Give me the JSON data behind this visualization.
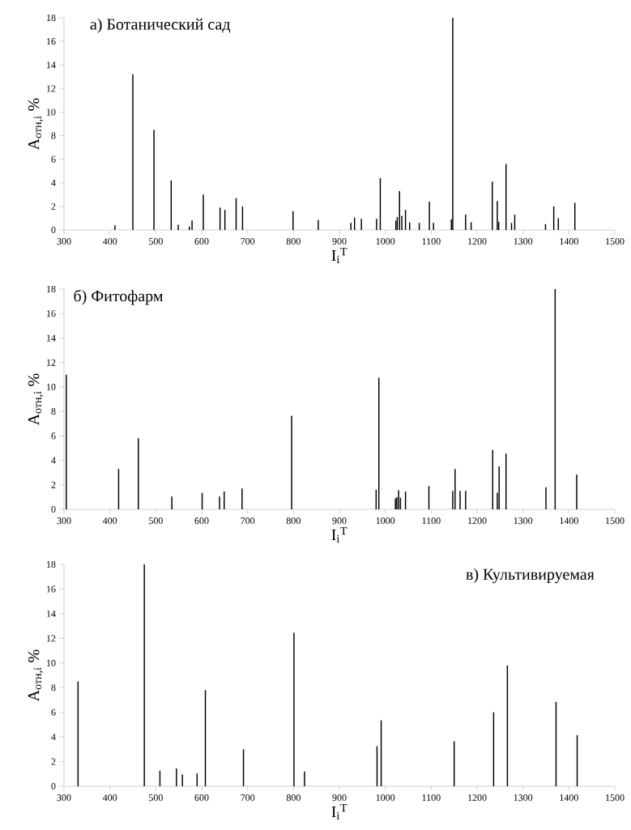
{
  "chart_data": [
    {
      "type": "bar",
      "title": "а) Ботанический сад",
      "xlabel": "I$_{i}$$^{T}$",
      "ylabel": "A$_{отн,i}$ %",
      "x": [
        411,
        450,
        496,
        533.5,
        549,
        573,
        579,
        603.5,
        640,
        650.6,
        675,
        689,
        799,
        854,
        925,
        933,
        948,
        981,
        989,
        1023,
        1026,
        1031,
        1036,
        1044,
        1053,
        1074,
        1096,
        1105,
        1144,
        1147,
        1175,
        1187,
        1233,
        1244,
        1247,
        1263,
        1275,
        1282,
        1349,
        1367,
        1377,
        1413
      ],
      "values": [
        0.4,
        13.2,
        8.5,
        4.2,
        0.45,
        0.3,
        0.8,
        3.0,
        1.9,
        1.7,
        2.7,
        2.0,
        1.6,
        0.85,
        0.6,
        1.05,
        0.95,
        0.95,
        4.4,
        0.8,
        1.1,
        3.3,
        1.2,
        1.7,
        0.65,
        0.6,
        2.4,
        0.6,
        0.9,
        18,
        1.3,
        0.65,
        4.1,
        2.45,
        0.7,
        5.6,
        0.6,
        1.3,
        0.5,
        2.0,
        1.0,
        2.3
      ],
      "color": "#000000",
      "xlim": [
        300,
        1500
      ],
      "ylim": [
        0,
        18
      ],
      "xticks": [
        300,
        400,
        500,
        600,
        700,
        800,
        900,
        1000,
        1100,
        1200,
        1300,
        1400,
        1500
      ],
      "yticks": [
        0,
        2,
        4,
        6,
        8,
        10,
        12,
        14,
        16,
        18
      ]
    },
    {
      "type": "bar",
      "title": "б) Фитофарм",
      "xlabel": "I$_{i}$$^{T}$",
      "ylabel": "A$_{отн,i}$ %",
      "x": [
        305,
        419,
        462,
        535,
        601,
        639,
        649,
        688,
        796,
        980,
        986,
        1022,
        1025,
        1029,
        1033,
        1044,
        1095,
        1147,
        1152,
        1163,
        1175,
        1234,
        1244,
        1248,
        1263,
        1350,
        1370,
        1417
      ],
      "values": [
        11.0,
        3.3,
        5.8,
        1.05,
        1.35,
        1.05,
        1.45,
        1.7,
        7.65,
        1.6,
        10.75,
        0.9,
        1.0,
        1.55,
        0.95,
        1.45,
        1.9,
        1.5,
        3.3,
        1.5,
        1.5,
        4.85,
        1.35,
        3.5,
        4.55,
        1.8,
        18,
        2.85
      ],
      "color": "#000000",
      "xlim": [
        300,
        1500
      ],
      "ylim": [
        0,
        18
      ],
      "xticks": [
        300,
        400,
        500,
        600,
        700,
        800,
        900,
        1000,
        1100,
        1200,
        1300,
        1400,
        1500
      ],
      "yticks": [
        0,
        2,
        4,
        6,
        8,
        10,
        12,
        14,
        16,
        18
      ]
    },
    {
      "type": "bar",
      "title": "в) Культивируемая",
      "xlabel": "I$_{i}$$^{T}$",
      "ylabel": "A$_{отн,i}$ %",
      "x": [
        330.6,
        475,
        509,
        545,
        558,
        590,
        608,
        691,
        801,
        824,
        982,
        991,
        1150,
        1236,
        1266,
        1372,
        1418
      ],
      "values": [
        8.5,
        18,
        1.27,
        1.45,
        0.95,
        1.05,
        7.8,
        3.0,
        12.45,
        1.2,
        3.25,
        5.35,
        3.65,
        6.0,
        9.8,
        6.85,
        4.15
      ],
      "color": "#000000",
      "xlim": [
        300,
        1500
      ],
      "ylim": [
        0,
        18
      ],
      "xticks": [
        300,
        400,
        500,
        600,
        700,
        800,
        900,
        1000,
        1100,
        1200,
        1300,
        1400,
        1500
      ],
      "yticks": [
        0,
        2,
        4,
        6,
        8,
        10,
        12,
        14,
        16,
        18
      ]
    }
  ]
}
